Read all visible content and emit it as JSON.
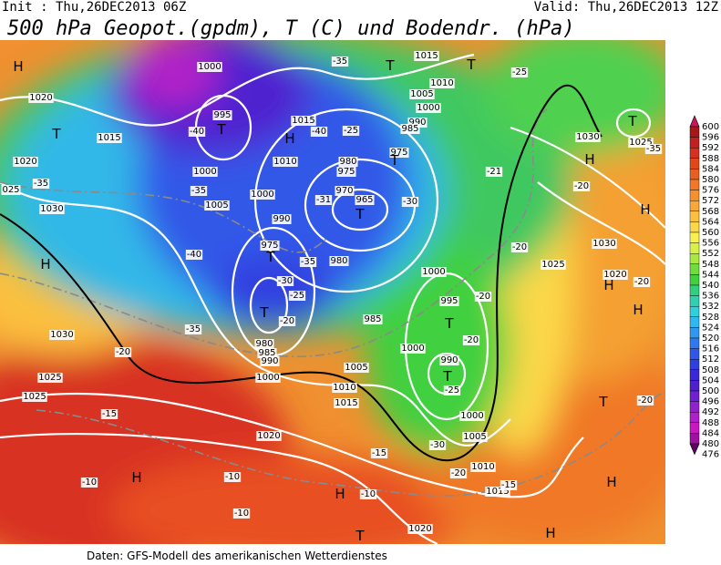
{
  "header": {
    "init": "Init : Thu,26DEC2013 06Z",
    "valid": "Valid: Thu,26DEC2013 12Z",
    "title": "500 hPa Geopot.(gpdm), T (C) und Bodendr. (hPa)"
  },
  "footer": "Daten: GFS-Modell des amerikanischen Wetterdienstes",
  "colorbar": {
    "ticks": [
      600,
      596,
      592,
      588,
      584,
      580,
      576,
      572,
      568,
      564,
      560,
      556,
      552,
      548,
      544,
      540,
      536,
      532,
      528,
      524,
      520,
      516,
      512,
      508,
      504,
      500,
      496,
      492,
      488,
      484,
      480,
      476
    ],
    "colors": [
      "#c8185a",
      "#a81818",
      "#c02020",
      "#d83020",
      "#e04818",
      "#e86020",
      "#f07828",
      "#f49030",
      "#f8a838",
      "#fcc040",
      "#fcd848",
      "#f8f050",
      "#d8f048",
      "#a8e840",
      "#70dc40",
      "#40d040",
      "#30d080",
      "#30d0b0",
      "#30d0d8",
      "#30b8f0",
      "#3098f0",
      "#3078f0",
      "#3058e8",
      "#3040e0",
      "#3c28d8",
      "#5020d0",
      "#7020d0",
      "#9020d0",
      "#b020c8",
      "#c818c0",
      "#a010a0",
      "#600060"
    ]
  },
  "map_labels": [
    "H",
    "1020",
    "T",
    "1015",
    "1020",
    "025",
    "-35",
    "1030",
    "H",
    "1030",
    "-20",
    "1025",
    "1025",
    "-15",
    "-10",
    "H",
    "-10",
    "-10",
    "1020",
    "1000",
    "995",
    "T",
    "-40",
    "1000",
    "-35",
    "1005",
    "1000",
    "-40",
    "-35",
    "1015",
    "H",
    "-40",
    "1010",
    "-35",
    "T",
    "1015",
    "T",
    "1005",
    "1010",
    "1000",
    "990",
    "985",
    "-25",
    "980",
    "975",
    "975",
    "T",
    "970",
    "965",
    "T",
    "-30",
    "-31",
    "990",
    "975",
    "980",
    "-35",
    "T",
    "-30",
    "-25",
    "T",
    "-20",
    "985",
    "980",
    "985",
    "990",
    "1000",
    "1005",
    "1010",
    "1015",
    "1000",
    "995",
    "T",
    "-20",
    "1000",
    "990",
    "T",
    "-25",
    "-20",
    "1000",
    "1005",
    "1010",
    "-20",
    "-15",
    "-10",
    "-30",
    "H",
    "1015",
    "-15",
    "T",
    "1020",
    "H",
    "H",
    "T",
    "-20",
    "H",
    "-20",
    "1020",
    "H",
    "1025",
    "1030",
    "-20",
    "H",
    "-20",
    "-21",
    "H",
    "1030",
    "-25",
    "T",
    "1025",
    "-35"
  ]
}
